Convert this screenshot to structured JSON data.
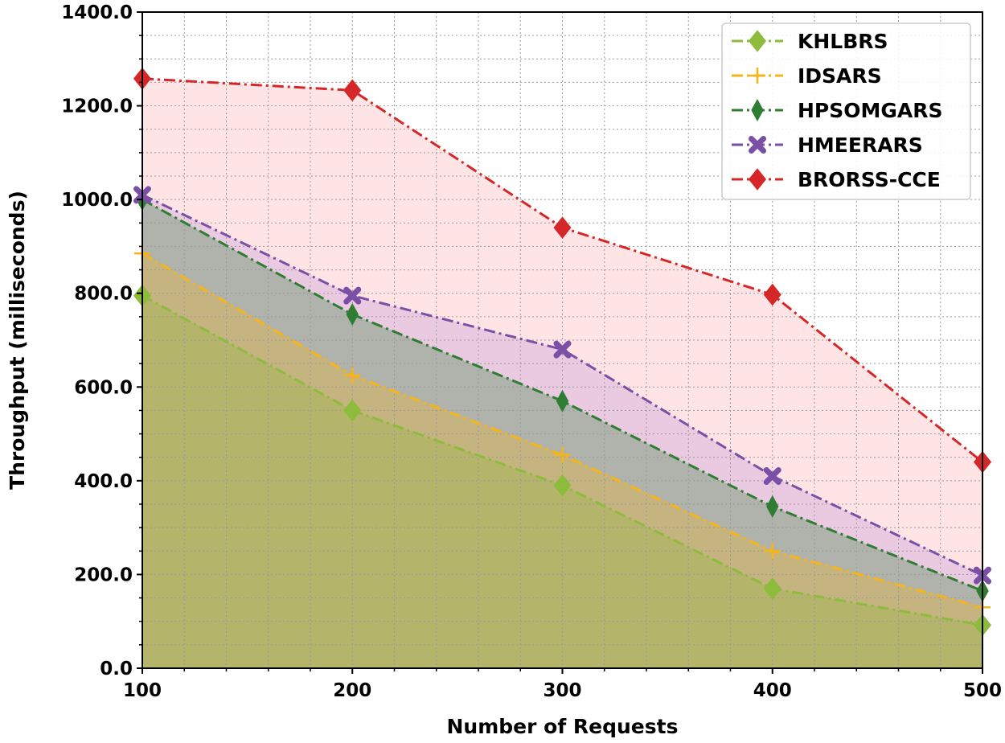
{
  "chart_data": {
    "type": "area",
    "xlabel": "Number of Requests",
    "ylabel": "Throughput (milliseconds)",
    "x": [
      100,
      200,
      300,
      400,
      500
    ],
    "xlim": [
      100,
      500
    ],
    "ylim": [
      0,
      1400
    ],
    "x_ticks": [
      100,
      200,
      300,
      400,
      500
    ],
    "y_ticks": [
      0,
      200,
      400,
      600,
      800,
      1000,
      1200,
      1400
    ],
    "y_tick_labels": [
      "0.0",
      "200.0",
      "400.0",
      "600.0",
      "800.0",
      "1000.0",
      "1200.0",
      "1400.0"
    ],
    "grid": true,
    "legend_position": "top-right",
    "series": [
      {
        "name": "KHLBRS",
        "values": [
          795,
          550,
          390,
          170,
          92
        ],
        "color": "#8dbb3c",
        "marker": "diamond",
        "fill": "#8dbb3c"
      },
      {
        "name": "IDSARS",
        "values": [
          885,
          625,
          455,
          250,
          130
        ],
        "color": "#f4b41a",
        "marker": "plus",
        "fill": "#f4b41a"
      },
      {
        "name": "HPSOMGARS",
        "values": [
          1000,
          755,
          570,
          345,
          165
        ],
        "color": "#2e7d32",
        "marker": "thin-diamond",
        "fill": "#2e7d32"
      },
      {
        "name": "HMEERARS",
        "values": [
          1010,
          795,
          680,
          410,
          198
        ],
        "color": "#7b4fa6",
        "marker": "x",
        "fill": "#b58fd6"
      },
      {
        "name": "BRORSS-CCE",
        "values": [
          1258,
          1233,
          940,
          797,
          440
        ],
        "color": "#d62728",
        "marker": "diamond",
        "fill": "#ffb3b5"
      }
    ]
  }
}
